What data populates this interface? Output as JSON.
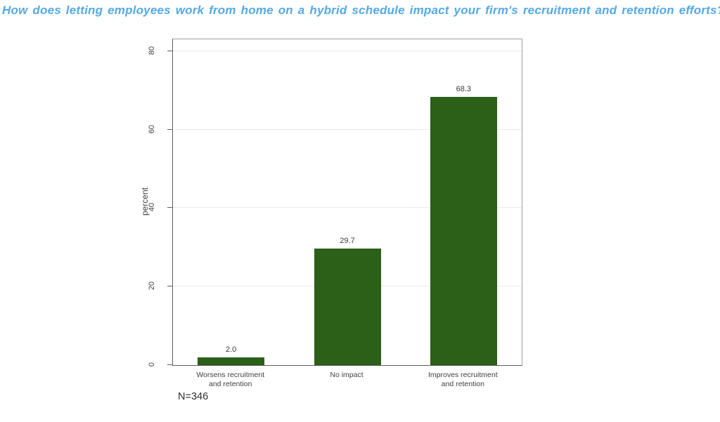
{
  "chart_data": {
    "type": "bar",
    "title": "How does letting employees work from home on a hybrid schedule impact your firm's recruitment and retention efforts?",
    "categories": [
      "Worsens recruitment\nand retention",
      "No impact",
      "Improves recruitment\nand retention"
    ],
    "values": [
      2.0,
      29.7,
      68.3
    ],
    "value_labels": [
      "2.0",
      "29.7",
      "68.3"
    ],
    "xlabel": "",
    "ylabel": "percent",
    "yticks": [
      0,
      20,
      40,
      60,
      80
    ],
    "ylim": [
      0,
      83
    ],
    "grid": true,
    "legend": "none",
    "note": "N=346"
  },
  "colors": {
    "title": "#55a9e6",
    "bar": "#2c5f18",
    "axis": "#5f5f5f",
    "gridline": "#e9e9e9",
    "label_text": "#3f3f3f"
  }
}
